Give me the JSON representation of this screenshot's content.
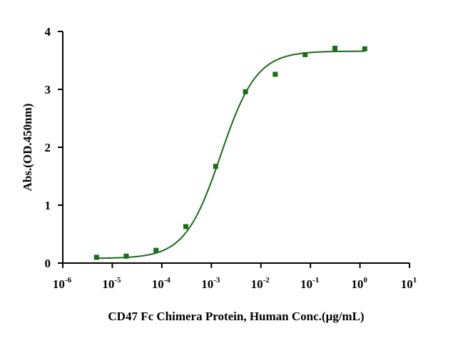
{
  "chart_data": {
    "type": "scatter",
    "title": "",
    "xlabel": "CD47 Fc Chimera Protein, Human Conc.(μg/mL)",
    "ylabel": "Abs.(OD.450nm)",
    "x_scale": "log",
    "xlim": [
      1e-06,
      10
    ],
    "ylim": [
      0,
      4
    ],
    "x_ticks": [
      {
        "base": "10",
        "exp": "-6",
        "value": 1e-06
      },
      {
        "base": "10",
        "exp": "-5",
        "value": 1e-05
      },
      {
        "base": "10",
        "exp": "-4",
        "value": 0.0001
      },
      {
        "base": "10",
        "exp": "-3",
        "value": 0.001
      },
      {
        "base": "10",
        "exp": "-2",
        "value": 0.01
      },
      {
        "base": "10",
        "exp": "-1",
        "value": 0.1
      },
      {
        "base": "10",
        "exp": "0",
        "value": 1
      },
      {
        "base": "10",
        "exp": "1",
        "value": 10
      }
    ],
    "y_ticks": [
      "0",
      "1",
      "2",
      "3",
      "4"
    ],
    "grid": false,
    "legend": "none",
    "series": [
      {
        "kind": "points",
        "marker": "square",
        "color": "#1a6b1a",
        "x": [
          4.8e-06,
          1.91e-05,
          7.63e-05,
          0.000305,
          0.00122,
          0.00488,
          0.0195,
          0.0781,
          0.3125,
          1.25
        ],
        "y": [
          0.1,
          0.12,
          0.22,
          0.63,
          1.67,
          2.96,
          3.26,
          3.6,
          3.71,
          3.7
        ]
      },
      {
        "kind": "fit-curve",
        "model": "four-parameter logistic",
        "color": "#1a6b1a",
        "bottom": 0.08,
        "top": 3.66,
        "ec50": 0.00155,
        "hill": 1.2,
        "x_range": [
          4.8e-06,
          1.25
        ]
      }
    ]
  }
}
